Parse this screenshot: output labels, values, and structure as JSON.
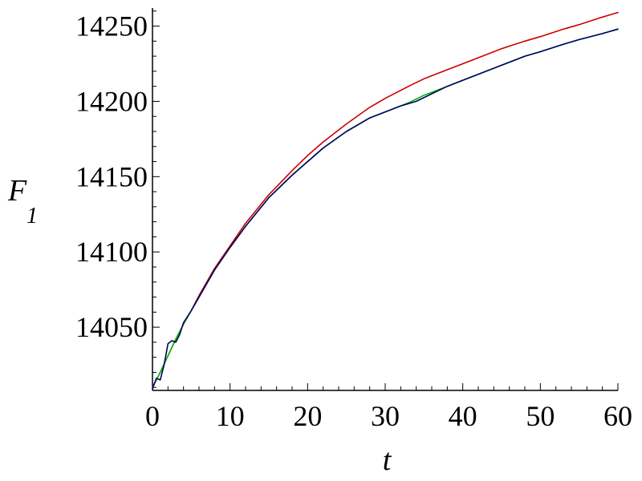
{
  "chart_data": {
    "type": "line",
    "xlabel": "t",
    "ylabel": "F",
    "ylabel_subscript": "1",
    "xlim": [
      0,
      60
    ],
    "ylim": [
      14008,
      14262
    ],
    "x_ticks": [
      0,
      10,
      20,
      30,
      40,
      50,
      60
    ],
    "y_ticks": [
      14050,
      14100,
      14150,
      14200,
      14250
    ],
    "grid": false,
    "series": [
      {
        "color": "#cc0000",
        "x": [
          0,
          1,
          2,
          3,
          4,
          5,
          6,
          8,
          10,
          12,
          15,
          18,
          20,
          22,
          25,
          28,
          30,
          33,
          35,
          38,
          40,
          43,
          45,
          48,
          50,
          53,
          55,
          58,
          60
        ],
        "y": [
          14010,
          14020,
          14031,
          14042,
          14052,
          14061,
          14071,
          14089,
          14104,
          14119,
          14138,
          14154,
          14164,
          14173,
          14185,
          14196,
          14202,
          14210,
          14215,
          14221,
          14225,
          14231,
          14235,
          14240,
          14243,
          14248,
          14251,
          14256,
          14259
        ]
      },
      {
        "color": "#00bb00",
        "x": [
          0,
          1,
          2,
          3,
          4,
          5,
          6,
          8,
          10,
          12,
          15,
          18,
          20,
          22,
          25,
          28,
          30,
          33,
          35,
          38,
          40,
          43,
          45,
          48,
          50,
          53,
          55,
          58,
          60
        ],
        "y": [
          14010,
          14020,
          14031,
          14042,
          14052,
          14061,
          14070,
          14088,
          14103,
          14117,
          14136,
          14151,
          14160,
          14169,
          14180,
          14189,
          14193,
          14199,
          14204,
          14210,
          14214,
          14220,
          14224,
          14230,
          14233,
          14238,
          14241,
          14245,
          14248
        ]
      },
      {
        "color": "#000066",
        "x": [
          0,
          0.5,
          1,
          1.5,
          2,
          2.5,
          3,
          3.5,
          4,
          5,
          6,
          8,
          10,
          12,
          15,
          18,
          20,
          22,
          25,
          28,
          30,
          32,
          34,
          36,
          38,
          40,
          43,
          45,
          48,
          50,
          53,
          55,
          58,
          60
        ],
        "y": [
          14009,
          14016,
          14015,
          14025,
          14039,
          14041,
          14040,
          14045,
          14053,
          14061,
          14070,
          14088,
          14103,
          14117,
          14136,
          14151,
          14160,
          14169,
          14180,
          14189,
          14193,
          14197,
          14200,
          14205,
          14210,
          14214,
          14220,
          14224,
          14230,
          14233,
          14238,
          14241,
          14245,
          14248
        ]
      }
    ]
  }
}
